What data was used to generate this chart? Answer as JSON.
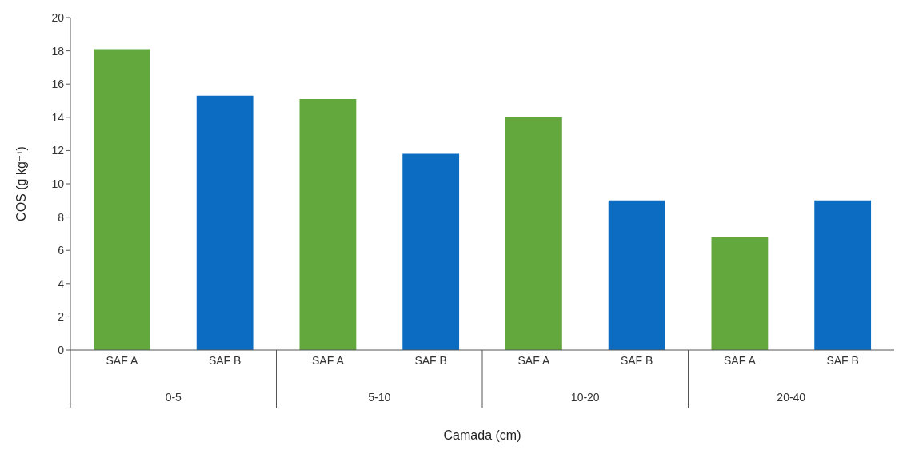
{
  "chart_data": {
    "type": "bar",
    "categories": [
      "SAF A",
      "SAF B",
      "SAF A",
      "SAF B",
      "SAF A",
      "SAF B",
      "SAF A",
      "SAF B"
    ],
    "values": [
      18.1,
      15.3,
      15.1,
      11.8,
      14.0,
      9.0,
      6.8,
      9.0
    ],
    "colors": [
      "#62a83c",
      "#0b6cc2",
      "#62a83c",
      "#0b6cc2",
      "#62a83c",
      "#0b6cc2",
      "#62a83c",
      "#0b6cc2"
    ],
    "ylim": [
      0,
      20
    ],
    "yticks": [
      0,
      2,
      4,
      6,
      8,
      10,
      12,
      14,
      16,
      18,
      20
    ],
    "ylabel": "COS (g kg⁻¹)",
    "xlabel": "Camada (cm)",
    "annotations": [
      "0-5",
      "5-10",
      "10-20",
      "20-40"
    ],
    "grid": false
  }
}
